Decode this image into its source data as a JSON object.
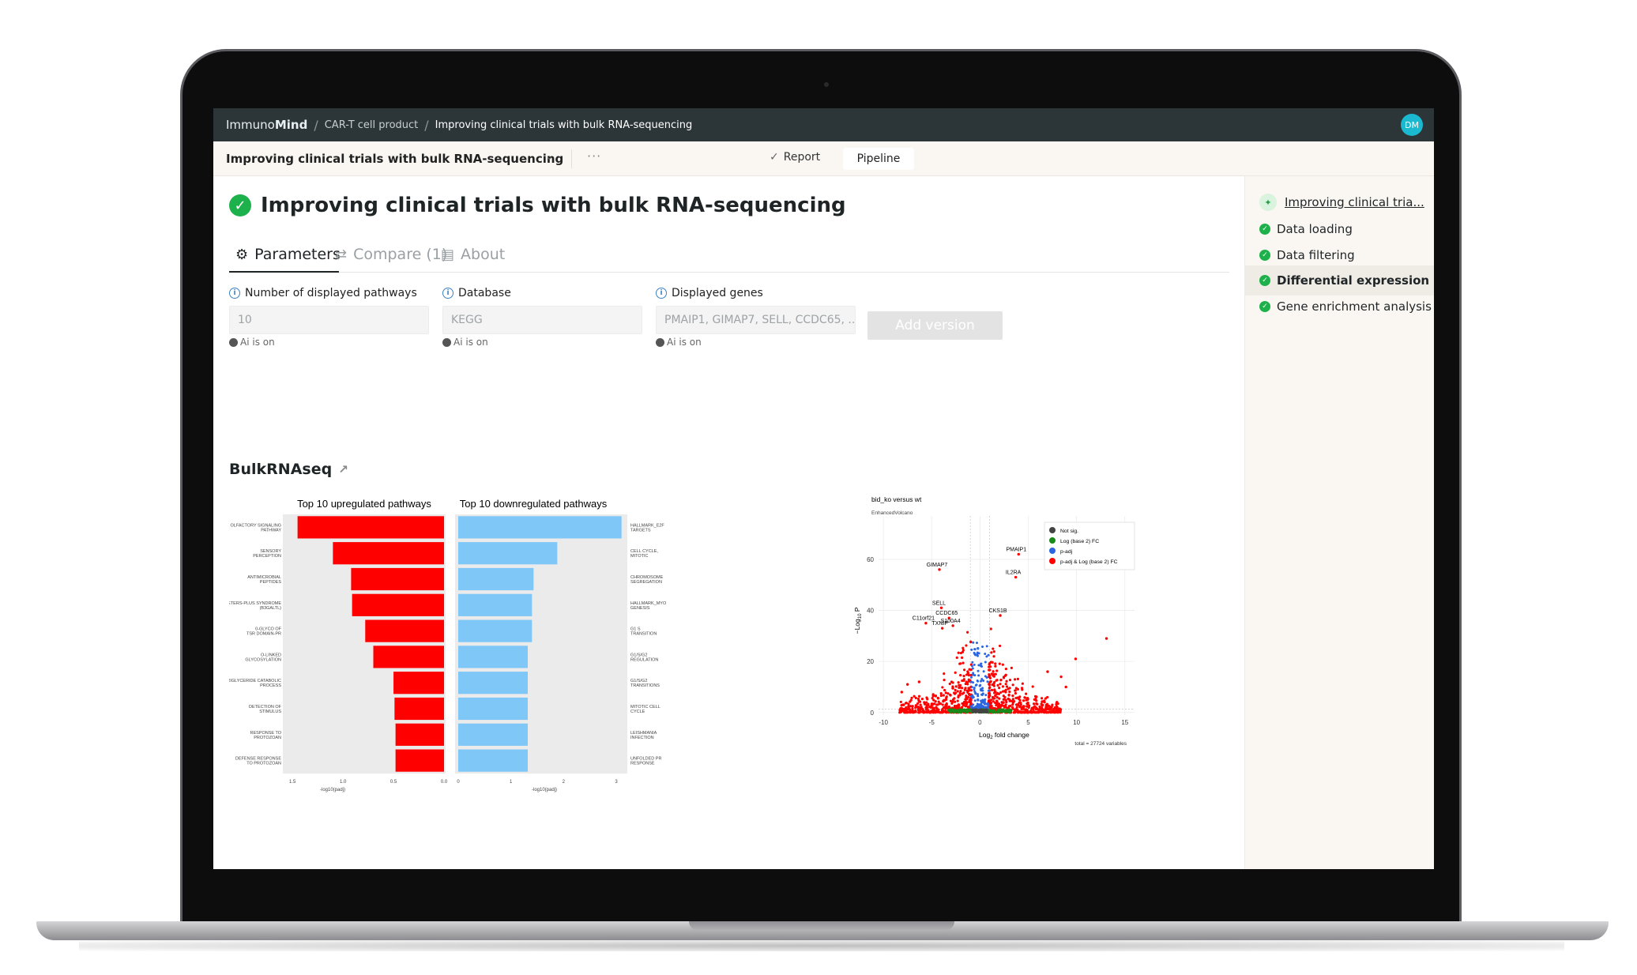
{
  "topbar": {
    "brand_prefix": "Immuno",
    "brand_bold": "Mind",
    "crumbs": [
      "CAR-T cell product",
      "Improving clinical trials with bulk RNA-sequencing"
    ],
    "avatar": "DM"
  },
  "subbar": {
    "doc_title": "Improving clinical trials with bulk RNA-sequencing",
    "more": "···",
    "report_label": "Report",
    "pipeline_label": "Pipeline"
  },
  "page": {
    "title": "Improving clinical trials with bulk RNA-sequencing",
    "tabs": [
      {
        "label": "Parameters",
        "icon": "sliders-icon"
      },
      {
        "label": "Compare (1)",
        "icon": "compare-icon"
      },
      {
        "label": "About",
        "icon": "document-icon"
      }
    ]
  },
  "params": [
    {
      "label": "Number of displayed pathways",
      "value": "10",
      "ai": "Ai is on"
    },
    {
      "label": "Database",
      "value": "KEGG",
      "ai": "Ai is on"
    },
    {
      "label": "Displayed genes",
      "value": "PMAIP1, GIMAP7, SELL, CCDC65, ...",
      "ai": "Ai is on"
    }
  ],
  "add_version_label": "Add version",
  "section_title": "BulkRNAseq",
  "sidebar": {
    "steps": [
      {
        "label": "Improving clinical tria...",
        "type": "root"
      },
      {
        "label": "Data loading",
        "type": "done"
      },
      {
        "label": "Data filtering",
        "type": "done"
      },
      {
        "label": "Differential expression ...",
        "type": "active"
      },
      {
        "label": "Gene enrichment analysis",
        "type": "done"
      }
    ]
  },
  "chart_data": [
    {
      "type": "bar",
      "orientation": "horizontal",
      "title": "Top 10 upregulated pathways",
      "xlabel": "-log10(padj)",
      "x_reversed": true,
      "xlim": [
        0,
        1.58
      ],
      "xticks": [
        "1.5",
        "1.0",
        "0.5",
        "0.0"
      ],
      "bar_color": "#ff0000",
      "categories": [
        "OLFACTORY SIGNALING PATHWAY",
        "SENSORY PERCEPTION",
        "ANTIMICROBIAL PEPTIDES",
        "PETERS-PLUS SYNDROME (B3GALTL)",
        "0-GLYCO OF TSR DOMAIN-PR",
        "O-LINKED GLYCOSYLATION",
        "TRIGLYCERIDE CATABOLIC PROCESS",
        "DETECTION OF STIMULUS",
        "RESPONSE TO PROTOZOAN",
        "DEFENSE RESPONSE TO PROTOZOAN"
      ],
      "values": [
        1.45,
        1.1,
        0.92,
        0.91,
        0.78,
        0.7,
        0.5,
        0.49,
        0.48,
        0.48
      ]
    },
    {
      "type": "bar",
      "orientation": "horizontal",
      "title": "Top 10 downregulated pathways",
      "xlabel": "-log10(padj)",
      "xlim": [
        0,
        3.15
      ],
      "xticks": [
        "0",
        "1",
        "2",
        "3"
      ],
      "bar_color": "#7ec7f7",
      "categories": [
        "HALLMARK_E2F TARGETS",
        "CELL CYCLE, MITOTIC",
        "CHROMOSOME SEGREGATION",
        "HALLMARK_MYO GENESIS",
        "G1 S TRANSITION",
        "G1/S/G2 REGULATION",
        "G1/S/G2 TRANSITIONS",
        "MITOTIC CELL CYCLE",
        "LEISHMANIA INFECTION",
        "UNFOLDED PR RESPONSE"
      ],
      "values": [
        3.1,
        1.88,
        1.43,
        1.4,
        1.4,
        1.32,
        1.32,
        1.32,
        1.32,
        1.32
      ]
    },
    {
      "type": "scatter",
      "title": "bid_ko versus wt",
      "subtitle": "EnhancedVolcano",
      "xlabel_main": "Log",
      "xlabel_sub": "2",
      "xlabel_rest": " fold change",
      "ylabel_main": "−Log",
      "ylabel_sub": "10",
      "ylabel_rest": " P",
      "xlim": [
        -10.5,
        16
      ],
      "ylim": [
        -1,
        77
      ],
      "xticks": [
        -10,
        -5,
        0,
        5,
        10,
        15
      ],
      "yticks": [
        0,
        20,
        40,
        60
      ],
      "caption": "total = 27724 variables",
      "legend": [
        {
          "label": "Not sig.",
          "color": "#444444"
        },
        {
          "label": "Log (base 2) FC",
          "color": "#1a8a1a"
        },
        {
          "label": "p-adj",
          "color": "#2b66e0"
        },
        {
          "label": "p-adj & Log (base 2) FC",
          "color": "#ff0000"
        }
      ],
      "labeled_genes": [
        {
          "gene": "PMAIP1",
          "x": 4.0,
          "y": 62
        },
        {
          "gene": "GIMAP7",
          "x": -4.2,
          "y": 56
        },
        {
          "gene": "IL2RA",
          "x": 3.7,
          "y": 53
        },
        {
          "gene": "SELL",
          "x": -4.0,
          "y": 41
        },
        {
          "gene": "CKS1B",
          "x": 2.1,
          "y": 38
        },
        {
          "gene": "CCDC65",
          "x": -3.2,
          "y": 37
        },
        {
          "gene": "C11orf21",
          "x": -5.6,
          "y": 35
        },
        {
          "gene": "S100A4",
          "x": -2.8,
          "y": 34
        },
        {
          "gene": "TXNIP",
          "x": -3.9,
          "y": 33
        }
      ],
      "outliers": [
        {
          "x": 13.1,
          "y": 29
        },
        {
          "x": 9.9,
          "y": 21
        },
        {
          "x": 8.4,
          "y": 14
        },
        {
          "x": -7.5,
          "y": 11
        },
        {
          "x": -8.1,
          "y": 8
        },
        {
          "x": 8.9,
          "y": 10
        },
        {
          "x": 7.0,
          "y": 16
        },
        {
          "x": -6.3,
          "y": 12
        }
      ]
    }
  ]
}
